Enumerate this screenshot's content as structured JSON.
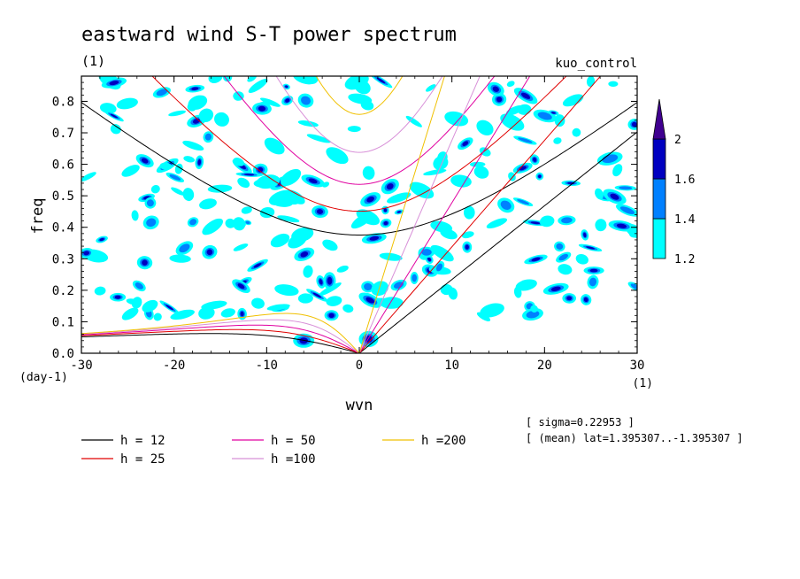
{
  "chart_data": {
    "type": "heatmap",
    "title": "eastward wind S-T power spectrum",
    "subtitle_left": "(1)",
    "subtitle_right": "kuo_control",
    "xlabel": "wvn",
    "ylabel": "freq",
    "x_unit": "(1)",
    "y_unit": "(day-1)",
    "xlim": [
      -30,
      30
    ],
    "ylim": [
      0,
      0.88
    ],
    "xticks": [
      -30,
      -20,
      -10,
      0,
      10,
      20,
      30
    ],
    "yticks": [
      0.0,
      0.1,
      0.2,
      0.3,
      0.4,
      0.5,
      0.6,
      0.7,
      0.8
    ],
    "xtick_labels": [
      "-30",
      "-20",
      "-10",
      "0",
      "10",
      "20",
      "30"
    ],
    "ytick_labels": [
      "0.0",
      "0.1",
      "0.2",
      "0.3",
      "0.4",
      "0.5",
      "0.6",
      "0.7",
      "0.8"
    ],
    "colorbar": {
      "levels": [
        1.2,
        1.4,
        1.6,
        2
      ],
      "level_labels": [
        "1.2",
        "1.4",
        "1.6",
        "2"
      ],
      "colors": [
        "#00ffff",
        "#0080ff",
        "#0000c0",
        "#400090"
      ]
    },
    "dispersion_curves": [
      {
        "name": "h = 12",
        "h": 12,
        "color": "#000000"
      },
      {
        "name": "h = 25",
        "h": 25,
        "color": "#e00000"
      },
      {
        "name": "h = 50",
        "h": 50,
        "color": "#e000a0"
      },
      {
        "name": "h =100",
        "h": 100,
        "color": "#d890d8"
      },
      {
        "name": "h =200",
        "h": 200,
        "color": "#f0c000"
      }
    ],
    "annotations": [
      "[ sigma=0.22953 ]",
      "[ (mean) lat=1.395307..-1.395307 ]"
    ],
    "grid": false
  }
}
